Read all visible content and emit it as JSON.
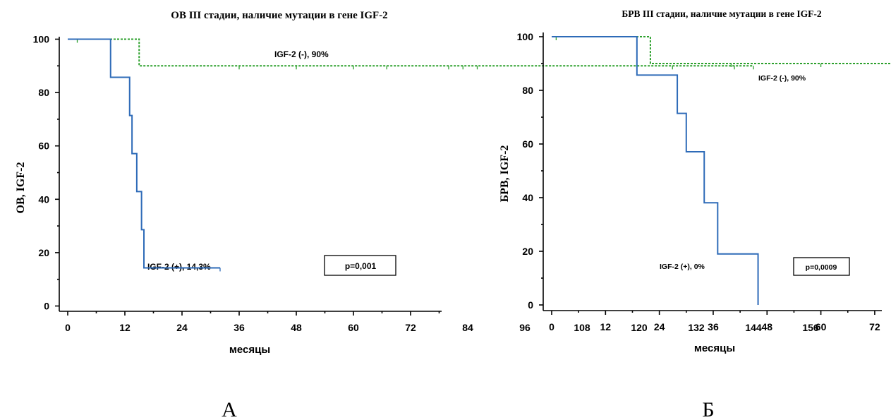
{
  "chart_data": [
    {
      "type": "line",
      "panel_label": "А",
      "title": "ОВ III стадии, наличие мутации в гене IGF-2",
      "ylabel": "ОВ, IGF-2",
      "xlabel": "месяцы",
      "xlim": [
        -3,
        160
      ],
      "ylim": [
        -2,
        103
      ],
      "x_ticks": [
        "0",
        "12",
        "24",
        "36",
        "48",
        "60",
        "72",
        "84",
        "96",
        "108",
        "120",
        "132",
        "144",
        "156"
      ],
      "y_ticks": [
        "0",
        "20",
        "40",
        "60",
        "80",
        "100"
      ],
      "p_value": "p=0,001",
      "series": [
        {
          "name": "IGF-2 (-), 90%",
          "color": "#2ca02c",
          "dashed": true,
          "steps": [
            [
              0,
              100
            ],
            [
              15,
              90
            ],
            [
              144,
              90
            ]
          ],
          "censor": [
            2,
            36,
            48,
            60,
            67,
            80,
            83,
            86,
            127,
            140,
            144
          ]
        },
        {
          "name": "IGF-2 (+), 14,3%",
          "color": "#2e6bb8",
          "dashed": false,
          "steps": [
            [
              0,
              100
            ],
            [
              9,
              85.7
            ],
            [
              13,
              71.4
            ],
            [
              13.5,
              57.1
            ],
            [
              14.5,
              42.9
            ],
            [
              15.5,
              28.6
            ],
            [
              16,
              14.3
            ],
            [
              32,
              14.3
            ]
          ],
          "censor": [
            32
          ]
        }
      ]
    },
    {
      "type": "line",
      "panel_label": "Б",
      "title": "БРВ III стадии, наличие мутации в гене IGF-2",
      "ylabel": "БРВ, IGF-2",
      "xlabel": "месяцы",
      "xlim": [
        -3,
        160
      ],
      "ylim": [
        -2,
        103
      ],
      "x_ticks": [
        "0",
        "12",
        "24",
        "36",
        "48",
        "60",
        "72",
        "84",
        "96",
        "108",
        "120",
        "132",
        "144",
        "156"
      ],
      "y_ticks": [
        "0",
        "20",
        "40",
        "60",
        "80",
        "100"
      ],
      "p_value": "p=0,0009",
      "series": [
        {
          "name": "IGF-2 (-), 90%",
          "color": "#2ca02c",
          "dashed": true,
          "steps": [
            [
              0,
              100
            ],
            [
              22,
              90
            ],
            [
              144,
              90
            ]
          ],
          "censor": [
            1,
            40,
            60,
            80,
            88,
            108,
            120,
            127,
            140,
            144
          ]
        },
        {
          "name": "IGF-2 (+), 0%",
          "color": "#2e6bb8",
          "dashed": false,
          "steps": [
            [
              0,
              100
            ],
            [
              19,
              85.7
            ],
            [
              28,
              71.4
            ],
            [
              30,
              57.1
            ],
            [
              34,
              38.1
            ],
            [
              37,
              19
            ],
            [
              46,
              0
            ]
          ],
          "censor": []
        }
      ]
    }
  ]
}
